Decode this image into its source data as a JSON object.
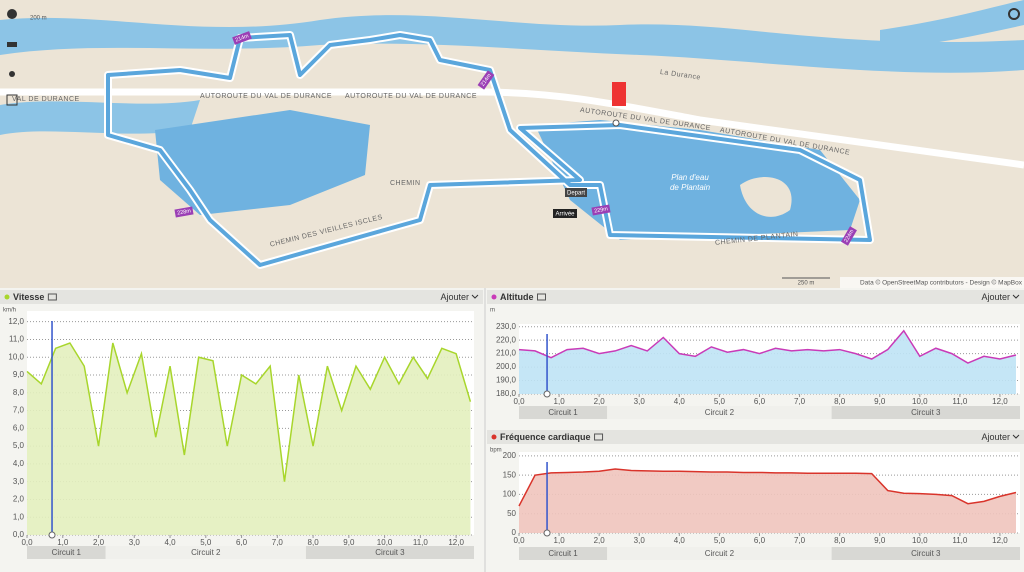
{
  "map": {
    "road": "AUTOROUTE DU VAL DE DURANCE",
    "road_cut": "VAL DE DURANCE",
    "river": "La Durance",
    "chemin": "CHEMIN",
    "chemin_iscles": "CHEMIN DES VIEILLES ISCLES",
    "chemin_plantain": "CHEMIN DE PLANTAIN",
    "lake_1": "Plan d'eau",
    "lake_2": "de Plantain",
    "start": "Depart",
    "finish": "Arrivée",
    "markers": [
      "214m",
      "214m",
      "228m",
      "229m",
      "224m"
    ],
    "scale": "250 m",
    "scale_top": "200 m",
    "credits": "Data © OpenStreetMap contributors - Design © MapBox"
  },
  "panels": [
    {
      "type": "area",
      "title": "Vitesse",
      "action": "Ajouter",
      "unit": "km/h",
      "color": "#a8d62c",
      "x": [
        0,
        0.4,
        0.8,
        1.2,
        1.6,
        2.0,
        2.4,
        2.8,
        3.2,
        3.6,
        4.0,
        4.4,
        4.8,
        5.2,
        5.6,
        6.0,
        6.4,
        6.8,
        7.2,
        7.6,
        8.0,
        8.4,
        8.8,
        9.2,
        9.6,
        10.0,
        10.4,
        10.8,
        11.2,
        11.6,
        12.0,
        12.4
      ],
      "values": [
        9.2,
        8.5,
        10.5,
        10.8,
        9.5,
        5.0,
        10.8,
        8.0,
        10.2,
        5.5,
        9.5,
        4.5,
        10.0,
        9.8,
        5.0,
        9.0,
        8.5,
        9.5,
        3.0,
        9.0,
        5.0,
        9.5,
        7.0,
        9.5,
        8.2,
        10.0,
        8.5,
        10.0,
        8.8,
        10.5,
        10.2,
        7.5
      ],
      "xlim": [
        0,
        12.5
      ],
      "ylim": [
        0,
        12.6
      ],
      "xticks": [
        {
          "value": 0,
          "label": "0,0"
        },
        {
          "value": 1,
          "label": "1,0"
        },
        {
          "value": 2,
          "label": "2,0"
        },
        {
          "value": 3,
          "label": "3,0"
        },
        {
          "value": 4,
          "label": "4,0"
        },
        {
          "value": 5,
          "label": "5,0"
        },
        {
          "value": 6,
          "label": "6,0"
        },
        {
          "value": 7,
          "label": "7,0"
        },
        {
          "value": 8,
          "label": "8,0"
        },
        {
          "value": 9,
          "label": "9,0"
        },
        {
          "value": 10,
          "label": "10,0"
        },
        {
          "value": 11,
          "label": "11,0"
        },
        {
          "value": 12,
          "label": "12,0"
        }
      ],
      "yticks": [
        {
          "value": 0,
          "label": "0,0"
        },
        {
          "value": 1,
          "label": "1,0"
        },
        {
          "value": 2,
          "label": "2,0"
        },
        {
          "value": 3,
          "label": "3,0"
        },
        {
          "value": 4,
          "label": "4,0"
        },
        {
          "value": 5,
          "label": "5,0"
        },
        {
          "value": 6,
          "label": "6,0"
        },
        {
          "value": 7,
          "label": "7,0"
        },
        {
          "value": 8,
          "label": "8,0"
        },
        {
          "value": 9,
          "label": "9,0"
        },
        {
          "value": 10,
          "label": "10,0"
        },
        {
          "value": 11,
          "label": "11,0"
        },
        {
          "value": 12,
          "label": "12,0"
        }
      ],
      "circuits": [
        {
          "label": "Circuit 1",
          "start": 0,
          "end": 2.2
        },
        {
          "label": "Circuit 2",
          "start": 2.2,
          "end": 7.8
        },
        {
          "label": "Circuit 3",
          "start": 7.8,
          "end": 12.5
        }
      ],
      "cursor": 0.7
    },
    {
      "type": "line",
      "title": "Altitude",
      "action": "Ajouter",
      "unit": "m",
      "color": "#c93bb8",
      "x": [
        0,
        0.4,
        0.8,
        1.2,
        1.6,
        2.0,
        2.4,
        2.8,
        3.2,
        3.6,
        4.0,
        4.4,
        4.8,
        5.2,
        5.6,
        6.0,
        6.4,
        6.8,
        7.2,
        7.6,
        8.0,
        8.4,
        8.8,
        9.2,
        9.6,
        10.0,
        10.4,
        10.8,
        11.2,
        11.6,
        12.0,
        12.4
      ],
      "values": [
        213,
        212,
        207,
        213,
        214,
        210,
        212,
        216,
        212,
        222,
        210,
        208,
        215,
        211,
        213,
        210,
        214,
        212,
        213,
        212,
        213,
        210,
        206,
        213,
        227,
        208,
        214,
        210,
        203,
        208,
        206,
        209
      ],
      "xlim": [
        0,
        12.5
      ],
      "ylim": [
        180,
        232
      ],
      "xticks": [
        {
          "value": 0,
          "label": "0,0"
        },
        {
          "value": 1,
          "label": "1,0"
        },
        {
          "value": 2,
          "label": "2,0"
        },
        {
          "value": 3,
          "label": "3,0"
        },
        {
          "value": 4,
          "label": "4,0"
        },
        {
          "value": 5,
          "label": "5,0"
        },
        {
          "value": 6,
          "label": "6,0"
        },
        {
          "value": 7,
          "label": "7,0"
        },
        {
          "value": 8,
          "label": "8,0"
        },
        {
          "value": 9,
          "label": "9,0"
        },
        {
          "value": 10,
          "label": "10,0"
        },
        {
          "value": 11,
          "label": "11,0"
        },
        {
          "value": 12,
          "label": "12,0"
        }
      ],
      "yticks": [
        {
          "value": 180,
          "label": "180,0"
        },
        {
          "value": 190,
          "label": "190,0"
        },
        {
          "value": 200,
          "label": "200,0"
        },
        {
          "value": 210,
          "label": "210,0"
        },
        {
          "value": 220,
          "label": "220,0"
        },
        {
          "value": 230,
          "label": "230,0"
        }
      ],
      "circuits": [
        {
          "label": "Circuit 1",
          "start": 0,
          "end": 2.2
        },
        {
          "label": "Circuit 2",
          "start": 2.2,
          "end": 7.8
        },
        {
          "label": "Circuit 3",
          "start": 7.8,
          "end": 12.5
        }
      ],
      "cursor": 0.7
    },
    {
      "type": "line",
      "title": "Fréquence cardiaque",
      "action": "Ajouter",
      "unit": "bpm",
      "color": "#d9342b",
      "x": [
        0,
        0.4,
        0.8,
        1.2,
        1.6,
        2.0,
        2.4,
        2.8,
        3.2,
        3.6,
        4.0,
        4.4,
        4.8,
        5.2,
        5.6,
        6.0,
        6.4,
        6.8,
        7.2,
        7.6,
        8.0,
        8.4,
        8.8,
        9.2,
        9.6,
        10.0,
        10.4,
        10.8,
        11.2,
        11.6,
        12.0,
        12.4
      ],
      "values": [
        70,
        150,
        156,
        157,
        158,
        160,
        166,
        162,
        161,
        160,
        160,
        159,
        158,
        158,
        157,
        157,
        156,
        156,
        155,
        155,
        155,
        155,
        154,
        110,
        103,
        102,
        100,
        97,
        76,
        82,
        95,
        105
      ],
      "xlim": [
        0,
        12.5
      ],
      "ylim": [
        0,
        210
      ],
      "xticks": [
        {
          "value": 0,
          "label": "0,0"
        },
        {
          "value": 1,
          "label": "1,0"
        },
        {
          "value": 2,
          "label": "2,0"
        },
        {
          "value": 3,
          "label": "3,0"
        },
        {
          "value": 4,
          "label": "4,0"
        },
        {
          "value": 5,
          "label": "5,0"
        },
        {
          "value": 6,
          "label": "6,0"
        },
        {
          "value": 7,
          "label": "7,0"
        },
        {
          "value": 8,
          "label": "8,0"
        },
        {
          "value": 9,
          "label": "9,0"
        },
        {
          "value": 10,
          "label": "10,0"
        },
        {
          "value": 11,
          "label": "11,0"
        },
        {
          "value": 12,
          "label": "12,0"
        }
      ],
      "yticks": [
        0,
        50,
        100,
        150,
        200
      ],
      "circuits": [
        {
          "label": "Circuit 1",
          "start": 0,
          "end": 2.2
        },
        {
          "label": "Circuit 2",
          "start": 2.2,
          "end": 7.8
        },
        {
          "label": "Circuit 3",
          "start": 7.8,
          "end": 12.5
        }
      ],
      "cursor": 0.7
    }
  ]
}
